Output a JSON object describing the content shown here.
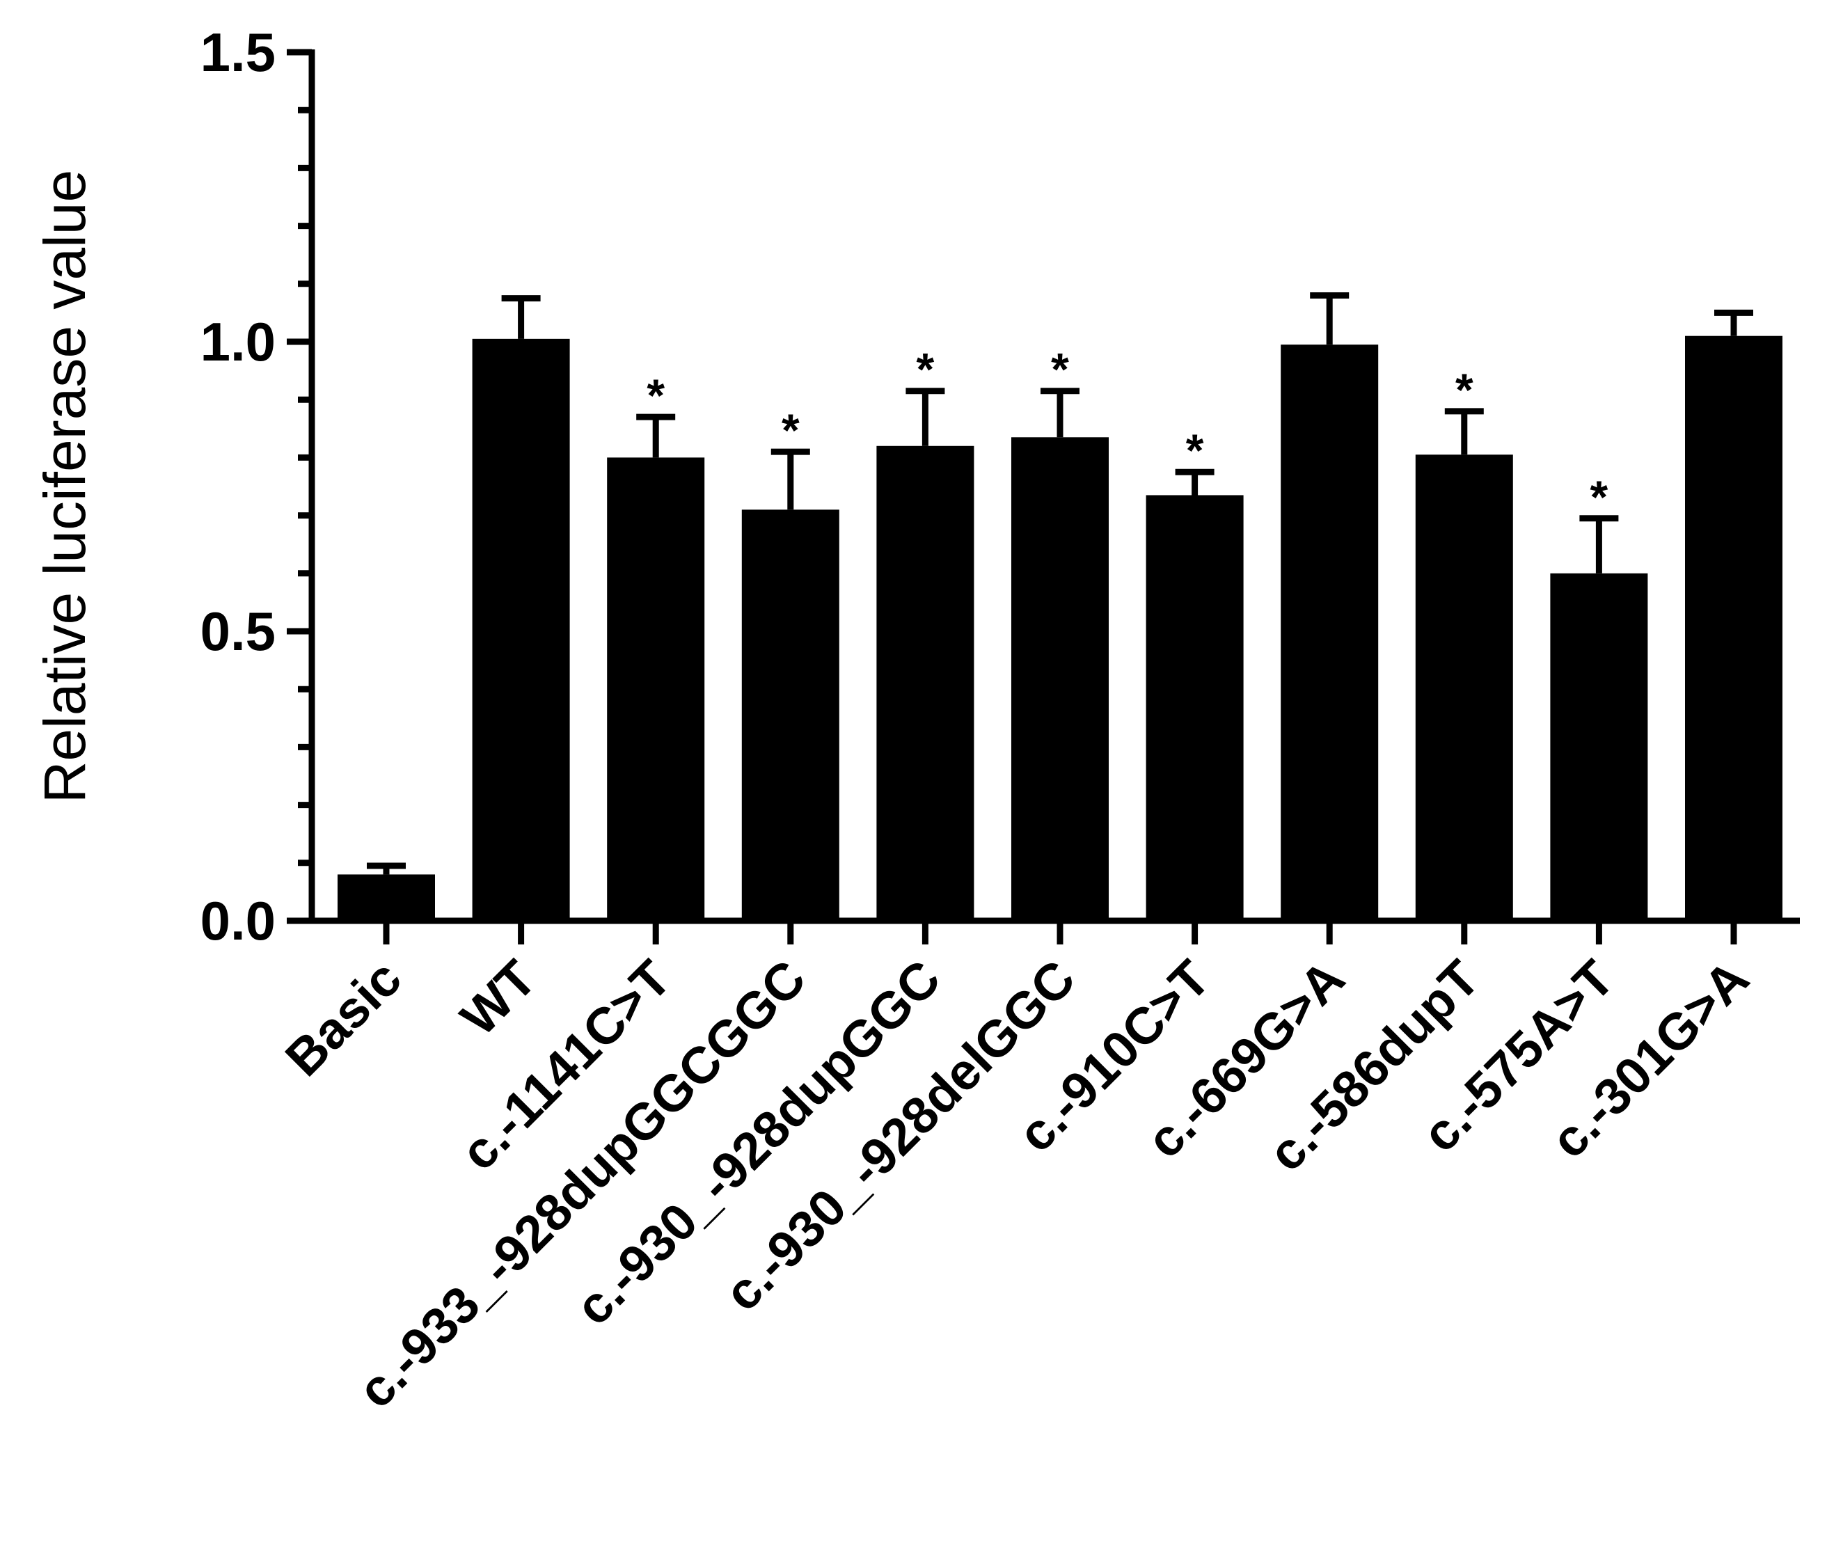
{
  "chart_data": {
    "type": "bar",
    "title": "",
    "xlabel": "",
    "ylabel": "Relative luciferase value",
    "ylim": [
      0,
      1.5
    ],
    "yticks": [
      {
        "value": 0.0,
        "label": "0.0"
      },
      {
        "value": 0.5,
        "label": "0.5"
      },
      {
        "value": 1.0,
        "label": "1.0"
      },
      {
        "value": 1.5,
        "label": "1.5"
      }
    ],
    "minor_tick_step": 0.1,
    "grid": false,
    "bar_color": "#000000",
    "significance_marker": "*",
    "categories": [
      "Basic",
      "WT",
      "c.-1141C>T",
      "c.-933_-928dupGGCGGC",
      "c.-930_-928dupGGC",
      "c.-930_-928delGGC",
      "c.-910C>T",
      "c.-669G>A",
      "c.-586dupT",
      "c.-575A>T",
      "c.-301G>A"
    ],
    "values": [
      0.08,
      1.005,
      0.8,
      0.71,
      0.82,
      0.835,
      0.735,
      0.995,
      0.805,
      0.6,
      1.01
    ],
    "errors": [
      0.015,
      0.07,
      0.07,
      0.1,
      0.095,
      0.08,
      0.04,
      0.085,
      0.075,
      0.095,
      0.04
    ],
    "significant": [
      false,
      false,
      true,
      true,
      true,
      true,
      true,
      false,
      true,
      true,
      false
    ]
  }
}
